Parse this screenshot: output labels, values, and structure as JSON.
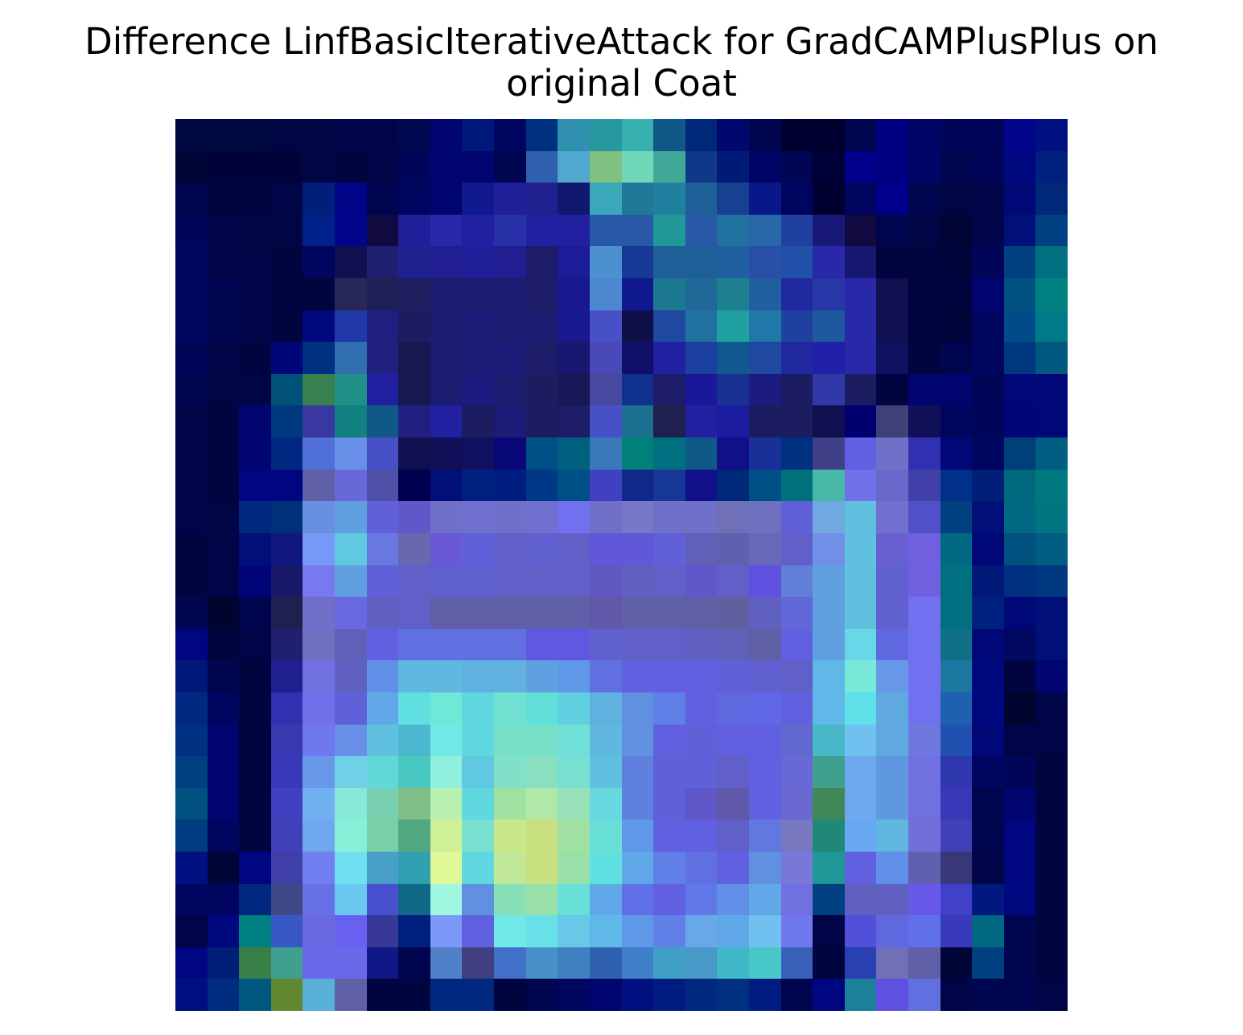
{
  "chart_data": {
    "type": "heatmap",
    "title_lines": [
      "Difference LinfBasicIterativeAttack for GradCAMPlusPlus on",
      "original Coat"
    ],
    "rows": 28,
    "cols": 28,
    "axes_visible": false,
    "grid": false,
    "legend": "none",
    "colorscale": "blue-teal-yellow overlay",
    "cells": [
      [
        "#000840",
        "#000840",
        "#000840",
        "#000545",
        "#000545",
        "#00054A",
        "#00054A",
        "#000850",
        "#000570",
        "#001878",
        "#000560",
        "#003080",
        "#3090B0",
        "#2898A0",
        "#38B0B0",
        "#105888",
        "#002878",
        "#000870",
        "#000550",
        "#000030",
        "#000030",
        "#000550",
        "#000080",
        "#000565",
        "#000558",
        "#00055A",
        "#00058A",
        "#001080"
      ],
      [
        "#000538",
        "#00033A",
        "#00033A",
        "#00033A",
        "#000545",
        "#000540",
        "#000548",
        "#00055A",
        "#000570",
        "#000570",
        "#000550",
        "#3060B0",
        "#50A8D0",
        "#80C080",
        "#70D8B8",
        "#40A898",
        "#103888",
        "#001A78",
        "#000565",
        "#000555",
        "#000038",
        "#00008A",
        "#000080",
        "#000568",
        "#000550",
        "#00055A",
        "#000880",
        "#002080"
      ],
      [
        "#000550",
        "#000540",
        "#000540",
        "#000548",
        "#001E7A",
        "#000588",
        "#000550",
        "#000560",
        "#000570",
        "#101890",
        "#201E98",
        "#202090",
        "#101870",
        "#3AA8B8",
        "#207898",
        "#2080A0",
        "#206098",
        "#184090",
        "#081888",
        "#000560",
        "#000030",
        "#000560",
        "#00008A",
        "#000550",
        "#000545",
        "#00054A",
        "#000878",
        "#002878"
      ],
      [
        "#00055A",
        "#000548",
        "#000545",
        "#000545",
        "#00208A",
        "#00058A",
        "#100A40",
        "#201E98",
        "#2828A8",
        "#2020A0",
        "#2830A8",
        "#2020A0",
        "#2020A0",
        "#2858A8",
        "#2858A8",
        "#209898",
        "#2858A8",
        "#2070A0",
        "#2868A8",
        "#2040A0",
        "#181878",
        "#100A40",
        "#000550",
        "#000545",
        "#000535",
        "#00054A",
        "#001078",
        "#004080"
      ],
      [
        "#000560",
        "#000548",
        "#000548",
        "#000540",
        "#000560",
        "#101050",
        "#202070",
        "#202090",
        "#201E90",
        "#201E98",
        "#201E90",
        "#1C1C68",
        "#1C1C98",
        "#4C90D0",
        "#183898",
        "#206098",
        "#206098",
        "#2060A0",
        "#2850A8",
        "#2050A8",
        "#2828A8",
        "#181870",
        "#000540",
        "#000540",
        "#00053A",
        "#000558",
        "#004080",
        "#007080"
      ],
      [
        "#000560",
        "#000550",
        "#000548",
        "#000540",
        "#000540",
        "#282858",
        "#202058",
        "#202060",
        "#1C1C70",
        "#1C1C70",
        "#1C1C70",
        "#1C1C68",
        "#181890",
        "#4C88D0",
        "#101890",
        "#1C7890",
        "#206898",
        "#1C8090",
        "#2060A0",
        "#2028A0",
        "#2838A8",
        "#2828A8",
        "#101050",
        "#000540",
        "#000540",
        "#000570",
        "#005080",
        "#008080"
      ],
      [
        "#000560",
        "#000550",
        "#000548",
        "#000540",
        "#000880",
        "#2038A8",
        "#202080",
        "#1C1C60",
        "#1C1C70",
        "#1C1C78",
        "#1C1C70",
        "#1C1C70",
        "#181890",
        "#4850C8",
        "#101048",
        "#2048A0",
        "#2070A0",
        "#20A0A0",
        "#2078A8",
        "#2040A0",
        "#2058A0",
        "#2828A8",
        "#101050",
        "#000540",
        "#00053A",
        "#000560",
        "#004C88",
        "#007A88"
      ],
      [
        "#000558",
        "#000548",
        "#000540",
        "#000578",
        "#003080",
        "#3070B0",
        "#202080",
        "#181850",
        "#1C1C70",
        "#1C1C78",
        "#1C1C78",
        "#1C1C68",
        "#181870",
        "#4848B8",
        "#101068",
        "#2020A0",
        "#1C40A0",
        "#105890",
        "#2048A0",
        "#2028A0",
        "#2020A8",
        "#2828A8",
        "#101060",
        "#000540",
        "#000550",
        "#000560",
        "#003880",
        "#005880"
      ],
      [
        "#000550",
        "#000545",
        "#000545",
        "#005078",
        "#388050",
        "#209088",
        "#2020A0",
        "#181850",
        "#1C1C70",
        "#1C1C80",
        "#1C1C70",
        "#1C1C60",
        "#181858",
        "#4848A0",
        "#103090",
        "#1C1C68",
        "#181898",
        "#183090",
        "#1C1C80",
        "#1C1C60",
        "#3038A8",
        "#1C1C60",
        "#000540",
        "#000570",
        "#000570",
        "#000558",
        "#000878",
        "#000878"
      ],
      [
        "#000548",
        "#000540",
        "#000570",
        "#003880",
        "#3838A0",
        "#108080",
        "#105888",
        "#202080",
        "#2020A0",
        "#1C1C60",
        "#1C1C78",
        "#1C1C60",
        "#1C1C68",
        "#4850C8",
        "#1C7090",
        "#202050",
        "#2020A0",
        "#1C1CA0",
        "#1C1C60",
        "#1C1C60",
        "#101050",
        "#000070",
        "#404078",
        "#101058",
        "#000560",
        "#00055A",
        "#000578",
        "#000878"
      ],
      [
        "#000548",
        "#000540",
        "#000570",
        "#002880",
        "#5070D8",
        "#6890E8",
        "#4850C8",
        "#101050",
        "#101058",
        "#101060",
        "#080878",
        "#005088",
        "#006080",
        "#3878B8",
        "#008078",
        "#007080",
        "#105888",
        "#101088",
        "#183098",
        "#003080",
        "#404088",
        "#6060E0",
        "#7070C8",
        "#3030B0",
        "#000878",
        "#000560",
        "#004078",
        "#005C80"
      ],
      [
        "#000548",
        "#000540",
        "#000580",
        "#000580",
        "#6060A8",
        "#6868D8",
        "#5050A8",
        "#000050",
        "#001078",
        "#002080",
        "#001E80",
        "#003888",
        "#005088",
        "#4040C0",
        "#102888",
        "#183898",
        "#101088",
        "#002878",
        "#005088",
        "#00707C",
        "#48B8A8",
        "#7070E8",
        "#6868C8",
        "#4040A8",
        "#003088",
        "#002078",
        "#00687C",
        "#007880"
      ],
      [
        "#000548",
        "#000545",
        "#002880",
        "#003078",
        "#6890E0",
        "#60A0E0",
        "#6060D8",
        "#6058C8",
        "#7070C8",
        "#7070D0",
        "#7070C8",
        "#7070D0",
        "#7070F0",
        "#7070C8",
        "#7878C8",
        "#7070C8",
        "#7070C8",
        "#7070B8",
        "#7070C0",
        "#6060D8",
        "#70A8E0",
        "#60C0E0",
        "#7070D0",
        "#5050C8",
        "#004080",
        "#001078",
        "#006880",
        "#007480"
      ],
      [
        "#000540",
        "#000548",
        "#001078",
        "#101880",
        "#7898F8",
        "#60C8E0",
        "#6878E0",
        "#6868B0",
        "#6858D8",
        "#6060D8",
        "#6060C8",
        "#6060D0",
        "#6060C8",
        "#6058D8",
        "#6058D8",
        "#6060D8",
        "#6060B8",
        "#6060B0",
        "#6868B8",
        "#6060C8",
        "#7090E8",
        "#60C0E0",
        "#6860D0",
        "#7060E0",
        "#006880",
        "#000878",
        "#005080",
        "#005C80"
      ],
      [
        "#000540",
        "#000548",
        "#000578",
        "#181868",
        "#7878F0",
        "#60A0E0",
        "#6060D8",
        "#6060C8",
        "#6060D0",
        "#6060D0",
        "#6060C8",
        "#6060C8",
        "#6060C8",
        "#6058C0",
        "#6060C0",
        "#6060C8",
        "#6058C8",
        "#6060C8",
        "#6050E0",
        "#6080D8",
        "#60A0E0",
        "#60C0E0",
        "#6060D0",
        "#7060E0",
        "#007080",
        "#001878",
        "#003080",
        "#003880"
      ],
      [
        "#000550",
        "#000530",
        "#000550",
        "#202050",
        "#7070C8",
        "#6868E0",
        "#6060C0",
        "#6060C8",
        "#6060A8",
        "#6060A8",
        "#6060A8",
        "#6060A8",
        "#6060A8",
        "#6058A8",
        "#6060A8",
        "#6060A8",
        "#6060A8",
        "#6060A0",
        "#6060C0",
        "#6068D8",
        "#60A0E0",
        "#60C0E0",
        "#6060D0",
        "#7070F0",
        "#007080",
        "#002080",
        "#000878",
        "#001078"
      ],
      [
        "#000580",
        "#000540",
        "#000548",
        "#202070",
        "#7070C0",
        "#6060B8",
        "#6060E0",
        "#6070E0",
        "#6070E0",
        "#6070E0",
        "#6070E0",
        "#6058E0",
        "#6058E0",
        "#6060D0",
        "#6060C8",
        "#6060C8",
        "#6060C0",
        "#6060B8",
        "#6060A8",
        "#6060E0",
        "#60A0E0",
        "#68D8E8",
        "#6068E0",
        "#7070F0",
        "#107088",
        "#000878",
        "#000860",
        "#001078"
      ],
      [
        "#001878",
        "#000550",
        "#000540",
        "#202090",
        "#7070E0",
        "#6060C0",
        "#6090E8",
        "#60B8E0",
        "#60B8E0",
        "#60B0E0",
        "#60B0E0",
        "#60A0E0",
        "#6098E8",
        "#6070E0",
        "#6060E0",
        "#6060E0",
        "#6060E0",
        "#6060D8",
        "#6060D0",
        "#6060C8",
        "#60B8E8",
        "#78E8D8",
        "#6898E8",
        "#7070F0",
        "#1C78A0",
        "#000880",
        "#000540",
        "#000570"
      ],
      [
        "#002880",
        "#000560",
        "#000540",
        "#3030B0",
        "#7070E8",
        "#6060D8",
        "#60A8E8",
        "#60E0E0",
        "#70E8D8",
        "#60D8E0",
        "#70E0D0",
        "#60E0D8",
        "#60D0E0",
        "#60B0E0",
        "#6090E0",
        "#6080E8",
        "#6060E0",
        "#6068E0",
        "#6068E8",
        "#6060E0",
        "#60B8E8",
        "#60E0E8",
        "#60A8E0",
        "#7070F0",
        "#2060B0",
        "#000880",
        "#000530",
        "#000548"
      ],
      [
        "#003080",
        "#000570",
        "#000540",
        "#3838B0",
        "#7078F0",
        "#6890E8",
        "#60C0E0",
        "#4CB8D0",
        "#70E8E8",
        "#60D8E0",
        "#78E0C8",
        "#78E0C8",
        "#70E0D8",
        "#60B8E0",
        "#6090E0",
        "#6060E0",
        "#6060D8",
        "#6060E0",
        "#6060E0",
        "#6068D0",
        "#48B8C8",
        "#70C0F0",
        "#60A8E0",
        "#7078E0",
        "#2050B0",
        "#000878",
        "#000548",
        "#000548"
      ],
      [
        "#004080",
        "#000570",
        "#000540",
        "#3838B8",
        "#6898E8",
        "#70D0E8",
        "#60D8D8",
        "#48C8C0",
        "#90F0E0",
        "#60C8E0",
        "#80E0C8",
        "#88E0C0",
        "#78E0D0",
        "#60C0E0",
        "#6080E0",
        "#6060D8",
        "#6060D8",
        "#6060C8",
        "#6060E0",
        "#6868D8",
        "#40A090",
        "#70A8F0",
        "#6098E0",
        "#7070E0",
        "#3038B0",
        "#000560",
        "#000558",
        "#000540"
      ],
      [
        "#005080",
        "#000570",
        "#000540",
        "#4040C0",
        "#70B0F0",
        "#88E8D8",
        "#78D0B0",
        "#80C088",
        "#B8F0B0",
        "#60D8E0",
        "#A0E0A0",
        "#B0E8A8",
        "#98E0B8",
        "#68D8E0",
        "#6080E0",
        "#6060D8",
        "#6058C8",
        "#6058A8",
        "#6060E0",
        "#6868D0",
        "#408858",
        "#70A8F0",
        "#6098E0",
        "#7070E0",
        "#3838B8",
        "#000550",
        "#000570",
        "#000540"
      ],
      [
        "#003C80",
        "#000560",
        "#000540",
        "#4040B8",
        "#70A8F0",
        "#88F0D8",
        "#78D0A8",
        "#50A880",
        "#D0F098",
        "#78E0D0",
        "#C8E888",
        "#C8E080",
        "#A0E0A0",
        "#68E0D8",
        "#6098E8",
        "#6060E0",
        "#6060E0",
        "#6060C8",
        "#6078E0",
        "#7878C0",
        "#208878",
        "#68A8F0",
        "#60B8E0",
        "#7070D8",
        "#4040B8",
        "#000550",
        "#000580",
        "#000540"
      ],
      [
        "#001080",
        "#000538",
        "#000580",
        "#4040A8",
        "#7080F0",
        "#70E0F0",
        "#48A0C8",
        "#30A0B0",
        "#E0F898",
        "#60D8E0",
        "#C0E898",
        "#C8E080",
        "#98E0A8",
        "#60E0E0",
        "#60A8E8",
        "#6080E8",
        "#6070E0",
        "#6060E0",
        "#6090E0",
        "#7878D8",
        "#209898",
        "#6060E0",
        "#6090E8",
        "#6060B0",
        "#383878",
        "#000548",
        "#000580",
        "#000540"
      ],
      [
        "#000560",
        "#000560",
        "#002880",
        "#404888",
        "#6870E8",
        "#68C8F0",
        "#4850D0",
        "#106888",
        "#A0F8E0",
        "#6090E0",
        "#88E0B8",
        "#98E0A8",
        "#68E0D8",
        "#60A8E8",
        "#6070E8",
        "#6060E0",
        "#6078E8",
        "#6090E8",
        "#60A8E8",
        "#7070E0",
        "#004080",
        "#6060C0",
        "#6060C0",
        "#6858E8",
        "#4040C8",
        "#001880",
        "#000880",
        "#000540"
      ],
      [
        "#000548",
        "#000880",
        "#008080",
        "#3858C8",
        "#6868E0",
        "#6860F0",
        "#383898",
        "#002080",
        "#7C98F8",
        "#6060E0",
        "#70E8E8",
        "#68E0E8",
        "#68C8E8",
        "#60B8E8",
        "#6098E8",
        "#6080E8",
        "#68A8E8",
        "#60A8E8",
        "#70C0F0",
        "#7078F0",
        "#000548",
        "#5050D8",
        "#6068E0",
        "#6070E8",
        "#383ABB",
        "#006880",
        "#000550",
        "#000540"
      ],
      [
        "#000580",
        "#002078",
        "#388048",
        "#40A090",
        "#6868E8",
        "#6868E8",
        "#101888",
        "#000550",
        "#5080C8",
        "#404080",
        "#4070C8",
        "#4890C8",
        "#4080C0",
        "#3060B0",
        "#4080C8",
        "#40A0C8",
        "#4898C8",
        "#40B8C8",
        "#48C8C8",
        "#3860B8",
        "#000540",
        "#2840B0",
        "#7070B8",
        "#6060A8",
        "#000538",
        "#004080",
        "#000550",
        "#000540"
      ],
      [
        "#001080",
        "#002C80",
        "#005880",
        "#608830",
        "#58B0D8",
        "#6060A8",
        "#000540",
        "#000540",
        "#002880",
        "#002880",
        "#000540",
        "#000550",
        "#000560",
        "#000570",
        "#001080",
        "#001C80",
        "#002880",
        "#003080",
        "#001C80",
        "#000550",
        "#000580",
        "#1C8098",
        "#6050E0",
        "#6070E0",
        "#000548",
        "#000550",
        "#000550",
        "#000548"
      ]
    ]
  }
}
